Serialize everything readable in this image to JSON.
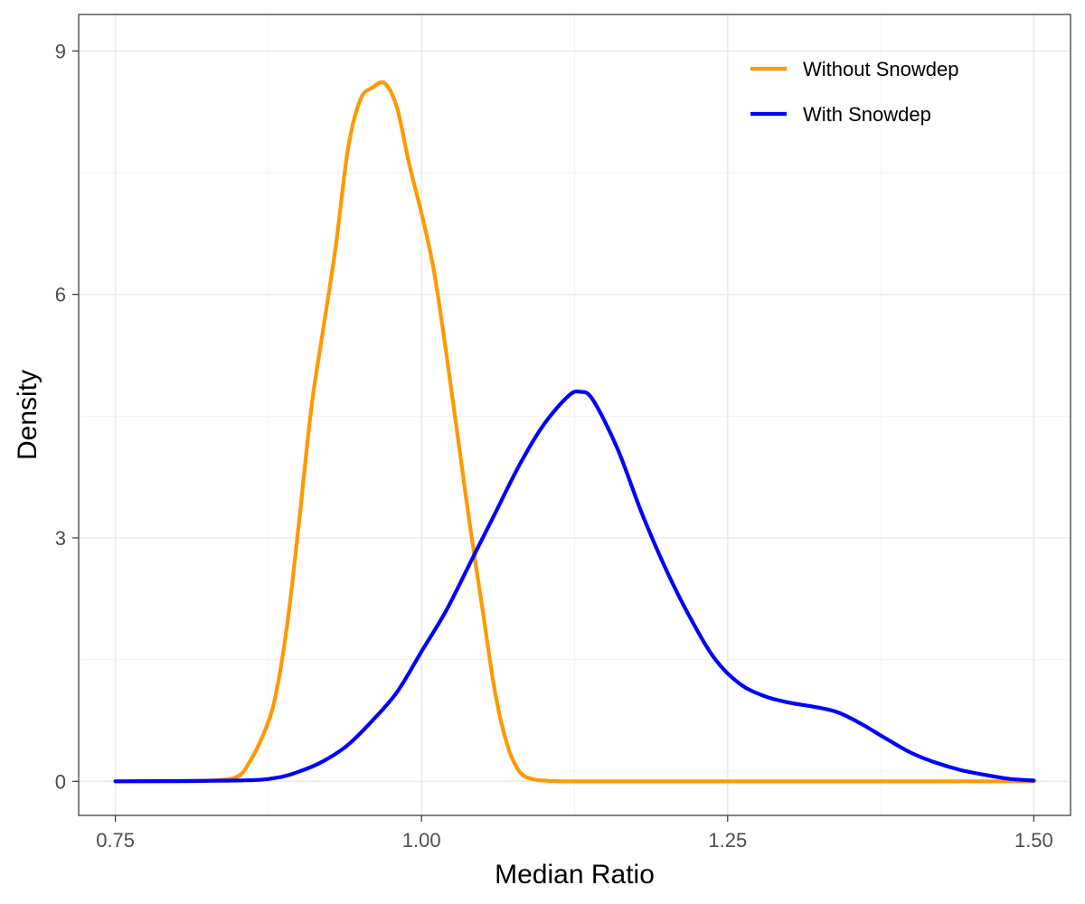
{
  "chart_data": {
    "type": "line",
    "title": "",
    "xlabel": "Median Ratio",
    "ylabel": "Density",
    "xlim": [
      0.72,
      1.53
    ],
    "ylim": [
      -0.42,
      9.45
    ],
    "x_ticks": [
      0.75,
      1.0,
      1.25,
      1.5
    ],
    "x_tick_labels": [
      "0.75",
      "1.00",
      "1.25",
      "1.50"
    ],
    "x_minor": [
      0.875,
      1.125,
      1.375
    ],
    "y_ticks": [
      0,
      3,
      6,
      9
    ],
    "y_tick_labels": [
      "0",
      "3",
      "6",
      "9"
    ],
    "y_minor": [
      1.5,
      4.5,
      7.5
    ],
    "grid": true,
    "legend_position": "top-right",
    "series": [
      {
        "name": "Without Snowdep",
        "color": "#FF9900",
        "x": [
          0.75,
          0.8,
          0.83,
          0.85,
          0.86,
          0.87,
          0.88,
          0.89,
          0.9,
          0.91,
          0.92,
          0.93,
          0.94,
          0.95,
          0.96,
          0.97,
          0.98,
          0.99,
          1.0,
          1.01,
          1.02,
          1.03,
          1.04,
          1.05,
          1.06,
          1.07,
          1.08,
          1.09,
          1.1,
          1.12,
          1.2,
          1.3,
          1.4,
          1.5
        ],
        "values": [
          0,
          0,
          0.01,
          0.06,
          0.25,
          0.55,
          1.0,
          1.9,
          3.2,
          4.6,
          5.6,
          6.6,
          7.8,
          8.4,
          8.55,
          8.6,
          8.3,
          7.6,
          7.0,
          6.3,
          5.3,
          4.2,
          3.1,
          2.1,
          1.1,
          0.45,
          0.12,
          0.03,
          0.01,
          0,
          0,
          0,
          0,
          0
        ]
      },
      {
        "name": "With Snowdep",
        "color": "#0000FF",
        "x": [
          0.75,
          0.85,
          0.88,
          0.9,
          0.92,
          0.94,
          0.96,
          0.98,
          1.0,
          1.02,
          1.04,
          1.06,
          1.08,
          1.1,
          1.12,
          1.13,
          1.14,
          1.16,
          1.18,
          1.2,
          1.22,
          1.24,
          1.26,
          1.28,
          1.3,
          1.32,
          1.34,
          1.36,
          1.38,
          1.4,
          1.42,
          1.44,
          1.46,
          1.48,
          1.5
        ],
        "values": [
          0,
          0.01,
          0.04,
          0.12,
          0.25,
          0.45,
          0.75,
          1.1,
          1.6,
          2.1,
          2.7,
          3.3,
          3.9,
          4.4,
          4.75,
          4.8,
          4.7,
          4.1,
          3.3,
          2.6,
          2.0,
          1.5,
          1.2,
          1.05,
          0.97,
          0.92,
          0.85,
          0.7,
          0.52,
          0.35,
          0.23,
          0.14,
          0.08,
          0.03,
          0.01
        ]
      }
    ]
  }
}
